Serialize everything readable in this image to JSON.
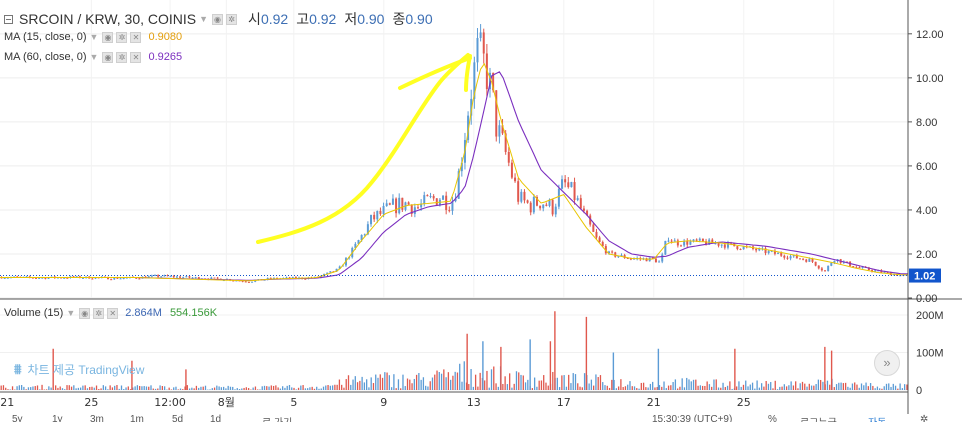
{
  "header": {
    "title": "SRCOIN / KRW, 30, COINIS",
    "ohlc": [
      {
        "label": "시",
        "value": "0.92"
      },
      {
        "label": "고",
        "value": "0.92"
      },
      {
        "label": "저",
        "value": "0.90"
      },
      {
        "label": "종",
        "value": "0.90"
      }
    ]
  },
  "indicators": {
    "ma15": {
      "label": "MA (15, close, 0)",
      "value": "0.9080"
    },
    "ma60": {
      "label": "MA (60, close, 0)",
      "value": "0.9265"
    },
    "volume": {
      "label": "Volume (15)",
      "value1": "2.864M",
      "value2": "554.156K"
    }
  },
  "watermark": {
    "text": "차트 제공",
    "brand": "TradingView"
  },
  "bottom_bar": {
    "ranges": [
      "5y",
      "1y",
      "3m",
      "1m",
      "5d",
      "1d"
    ],
    "goto": "로 가기",
    "time": "15:30:39 (UTC+9)",
    "percent": "%",
    "log": "로그누금",
    "auto": "자동"
  },
  "colors": {
    "up": "#5b9bd5",
    "down": "#e0584d",
    "ma15": "#e8c500",
    "ma60": "#7b2fbf",
    "price_tag": "#1155cc",
    "annotation": "#ffff22"
  },
  "chart_data": [
    {
      "type": "candlestick",
      "title": "SRCOIN / KRW, 30, COINIS",
      "x_ticks": [
        "21",
        "25",
        "12:00",
        "8월",
        "5",
        "9",
        "13",
        "17",
        "21",
        "25"
      ],
      "y_ticks": [
        "0.00",
        "2.00",
        "4.00",
        "6.00",
        "8.00",
        "10.00",
        "12.00"
      ],
      "ylim": [
        0,
        12.9
      ],
      "last_price": 1.02,
      "close_series": {
        "days": [
          -12,
          -11,
          -10,
          -9,
          -8,
          -7,
          -6,
          -5,
          -4,
          -3,
          -2,
          -1,
          0,
          1,
          2,
          3,
          3.5,
          4,
          4.5,
          5,
          5.5,
          6,
          6.5,
          7,
          7.5,
          8,
          8.3,
          8.6,
          8.8,
          9,
          9.2,
          9.5,
          9.8,
          10,
          10.5,
          11,
          11.5,
          12,
          12.5,
          13,
          13.5,
          14,
          14.5,
          15,
          16,
          17,
          17.3,
          17.6,
          18,
          19,
          20,
          21,
          22,
          23,
          24,
          24.6,
          25,
          26,
          27,
          28
        ],
        "values": [
          0.95,
          0.93,
          0.92,
          0.94,
          0.93,
          0.9,
          0.92,
          1.0,
          0.95,
          0.9,
          0.85,
          0.75,
          0.88,
          0.9,
          0.92,
          1.3,
          2.0,
          2.8,
          3.6,
          3.9,
          4.2,
          4.3,
          4.1,
          4.4,
          4.6,
          4.3,
          5.4,
          7.5,
          9.0,
          10.2,
          11.3,
          10.5,
          9.3,
          7.8,
          6.3,
          4.5,
          4.2,
          4.4,
          4.1,
          5.2,
          4.6,
          3.5,
          2.6,
          2.0,
          1.8,
          1.75,
          1.6,
          2.8,
          2.5,
          2.55,
          2.45,
          2.3,
          2.1,
          1.9,
          1.7,
          1.2,
          1.8,
          1.4,
          1.2,
          1.02
        ]
      },
      "ma15_series": {
        "days": [
          -12,
          -6,
          -1,
          0,
          2,
          3,
          4,
          5,
          6,
          7,
          8,
          8.6,
          9,
          9.4,
          9.8,
          10.2,
          11,
          12,
          13,
          14,
          15,
          16,
          17,
          17.6,
          18.5,
          20,
          22,
          24,
          25,
          26,
          27,
          28
        ],
        "values": [
          0.93,
          0.93,
          0.78,
          0.86,
          0.92,
          1.25,
          2.6,
          3.8,
          4.2,
          4.3,
          4.4,
          6.6,
          9.2,
          10.8,
          9.8,
          8.1,
          5.4,
          4.3,
          4.7,
          3.2,
          2.0,
          1.8,
          1.75,
          2.5,
          2.6,
          2.5,
          2.2,
          1.8,
          1.6,
          1.35,
          1.15,
          1.05
        ]
      },
      "ma60_series": {
        "days": [
          -12,
          -6,
          -1,
          0,
          2,
          3,
          4,
          5,
          6,
          7,
          8,
          8.6,
          9,
          9.4,
          9.8,
          10.2,
          11,
          12,
          13,
          14,
          15,
          16,
          17,
          17.6,
          18.5,
          20,
          22,
          24,
          25,
          26,
          27,
          28
        ],
        "values": [
          0.93,
          0.93,
          0.8,
          0.85,
          0.9,
          1.05,
          1.8,
          3.0,
          3.8,
          4.15,
          4.3,
          5.0,
          6.5,
          8.3,
          10.1,
          10.3,
          8.0,
          5.8,
          4.8,
          3.8,
          2.6,
          2.0,
          1.85,
          1.9,
          2.3,
          2.55,
          2.35,
          2.0,
          1.75,
          1.5,
          1.25,
          1.1
        ]
      }
    },
    {
      "type": "bar",
      "title": "Volume (15)",
      "y_ticks": [
        "0",
        "100M",
        "200M"
      ],
      "ylim": [
        0,
        240
      ],
      "values_unit": "M",
      "volume_profile": {
        "days": [
          -12,
          -4,
          -1,
          0,
          2,
          3,
          3.5,
          4,
          5,
          6,
          7,
          8,
          8.5,
          9,
          9.5,
          10,
          10.5,
          11,
          12,
          13,
          14,
          15,
          16,
          17,
          18,
          19,
          20,
          21,
          22,
          23,
          24,
          24.6,
          25,
          26,
          27,
          28
        ],
        "values": [
          8,
          8,
          6,
          7,
          9,
          16,
          24,
          26,
          30,
          26,
          30,
          38,
          46,
          44,
          40,
          38,
          33,
          30,
          28,
          28,
          26,
          22,
          18,
          16,
          20,
          18,
          16,
          16,
          14,
          16,
          15,
          20,
          18,
          14,
          12,
          10
        ]
      },
      "spikes": [
        {
          "day": -9.7,
          "value": 110
        },
        {
          "day": -6.2,
          "value": 78
        },
        {
          "day": -3.8,
          "value": 55
        },
        {
          "day": 8.7,
          "value": 150
        },
        {
          "day": 9.4,
          "value": 130
        },
        {
          "day": 10.2,
          "value": 115
        },
        {
          "day": 11.5,
          "value": 135
        },
        {
          "day": 12.4,
          "value": 130
        },
        {
          "day": 12.6,
          "value": 210
        },
        {
          "day": 14.0,
          "value": 195
        },
        {
          "day": 15.2,
          "value": 100
        },
        {
          "day": 17.2,
          "value": 110
        },
        {
          "day": 20.6,
          "value": 110
        },
        {
          "day": 24.6,
          "value": 115
        },
        {
          "day": 24.9,
          "value": 105
        }
      ]
    }
  ]
}
